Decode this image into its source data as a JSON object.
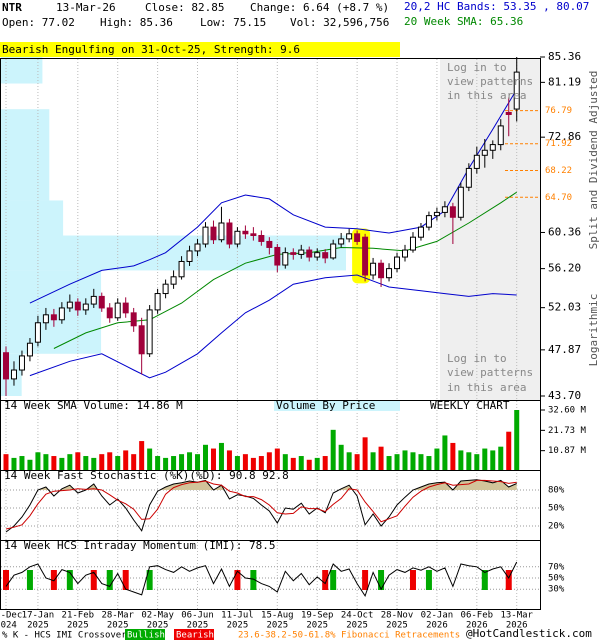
{
  "header": {
    "symbol": "NTR",
    "date": "13-Mar-26",
    "close": "Close: 82.85",
    "change": "Change: 6.64 (+8.7 %)",
    "bands": "20,2 HC Bands: 53.35 , 80.07",
    "open": "Open: 77.02",
    "high": "High: 85.36",
    "low": "Low: 75.15",
    "volume": "Vol: 32,596,756",
    "sma": "20 Week SMA: 65.36"
  },
  "chart_data": [
    {
      "type": "candlestick",
      "annotation": "Bearish Engulfing on 31-Oct-25, Strength: 9.6",
      "pattern_weeks": [
        44,
        45
      ],
      "locked_text": [
        "Log in to",
        "view patterns",
        "in this area"
      ],
      "axis_labels": [
        "Split and Dividend Adjusted",
        "Logarithmic"
      ],
      "categories": [
        "20-Dec",
        null,
        null,
        null,
        "17-Jan",
        null,
        null,
        null,
        null,
        "21-Feb",
        null,
        null,
        null,
        null,
        "28-Mar",
        null,
        null,
        null,
        null,
        "02-May",
        null,
        null,
        null,
        null,
        "06-Jun",
        null,
        null,
        null,
        null,
        "11-Jul",
        null,
        null,
        null,
        null,
        "15-Aug",
        null,
        null,
        null,
        null,
        "19-Sep",
        null,
        null,
        null,
        null,
        "24-Oct",
        null,
        null,
        null,
        null,
        "28-Nov",
        null,
        null,
        null,
        null,
        "02-Jan",
        null,
        null,
        null,
        null,
        "06-Feb",
        null,
        null,
        null,
        null,
        "13-Mar"
      ],
      "category_years": [
        "2024",
        null,
        null,
        null,
        "2025",
        null,
        null,
        null,
        null,
        "2025",
        null,
        null,
        null,
        null,
        "2025",
        null,
        null,
        null,
        null,
        "2025",
        null,
        null,
        null,
        null,
        "2025",
        null,
        null,
        null,
        null,
        "2025",
        null,
        null,
        null,
        null,
        "2025",
        null,
        null,
        null,
        null,
        "2025",
        null,
        null,
        null,
        null,
        "2025",
        null,
        null,
        null,
        null,
        "2025",
        null,
        null,
        null,
        null,
        "2026",
        null,
        null,
        null,
        null,
        "2026",
        null,
        null,
        null,
        null,
        "2026"
      ],
      "open": [
        47.6,
        45.2,
        46.0,
        47.3,
        48.6,
        50.5,
        51.3,
        50.8,
        52.0,
        52.6,
        51.8,
        52.4,
        53.2,
        52.0,
        51.0,
        52.5,
        51.5,
        50.2,
        47.5,
        51.8,
        53.5,
        54.5,
        55.3,
        57.0,
        58.2,
        59.0,
        61.0,
        59.5,
        61.5,
        59.0,
        60.5,
        60.2,
        60.0,
        59.3,
        58.6,
        56.6,
        58.0,
        57.8,
        58.3,
        57.5,
        58.0,
        57.4,
        59.0,
        59.6,
        60.2,
        59.8,
        55.5,
        56.8,
        55.2,
        56.2,
        57.5,
        58.3,
        59.8,
        61.0,
        62.4,
        62.8,
        63.5,
        62.2,
        66.0,
        68.5,
        70.3,
        71.0,
        71.8,
        76.5,
        77.02
      ],
      "high": [
        48.2,
        46.8,
        47.8,
        49.0,
        51.2,
        52.0,
        51.9,
        52.6,
        53.4,
        53.0,
        53.0,
        54.0,
        53.6,
        52.5,
        53.0,
        53.1,
        52.0,
        51.0,
        52.3,
        54.0,
        55.0,
        56.0,
        57.6,
        58.8,
        59.6,
        61.6,
        61.8,
        63.5,
        62.0,
        61.0,
        61.2,
        61.0,
        60.6,
        59.8,
        59.0,
        58.6,
        58.5,
        58.9,
        58.7,
        58.5,
        58.4,
        59.5,
        60.3,
        60.8,
        60.6,
        60.2,
        57.4,
        57.2,
        56.8,
        58.0,
        58.9,
        60.4,
        61.5,
        62.9,
        63.4,
        64.2,
        64.0,
        66.6,
        69.2,
        71.5,
        72.6,
        72.4,
        75.5,
        78.8,
        85.36
      ],
      "low": [
        43.7,
        44.6,
        45.5,
        46.8,
        48.2,
        49.8,
        50.1,
        50.4,
        51.6,
        51.2,
        51.3,
        52.0,
        51.6,
        50.5,
        50.7,
        51.0,
        49.6,
        45.6,
        47.2,
        51.4,
        53.0,
        54.0,
        55.0,
        56.5,
        57.6,
        58.6,
        59.0,
        59.2,
        58.5,
        58.6,
        59.6,
        59.4,
        58.8,
        57.8,
        55.8,
        56.2,
        57.2,
        57.3,
        57.0,
        57.1,
        56.8,
        57.2,
        58.6,
        59.2,
        58.9,
        54.8,
        55.0,
        54.2,
        54.8,
        55.8,
        57.0,
        58.0,
        59.4,
        60.6,
        61.8,
        62.2,
        59.0,
        61.8,
        65.5,
        67.8,
        68.6,
        69.8,
        71.0,
        73.0,
        75.15
      ],
      "close": [
        45.2,
        46.0,
        47.3,
        48.5,
        50.5,
        51.3,
        50.8,
        52.0,
        52.6,
        51.8,
        52.4,
        53.2,
        52.0,
        51.0,
        52.5,
        51.5,
        50.2,
        47.5,
        51.8,
        53.5,
        54.5,
        55.3,
        57.0,
        58.2,
        59.0,
        61.0,
        59.5,
        61.5,
        59.0,
        60.5,
        60.2,
        60.0,
        59.3,
        58.6,
        56.6,
        58.0,
        57.8,
        58.3,
        57.5,
        58.0,
        57.4,
        59.0,
        59.6,
        60.2,
        59.3,
        55.5,
        56.8,
        55.2,
        56.2,
        57.5,
        58.3,
        59.8,
        61.0,
        62.4,
        62.8,
        63.5,
        62.2,
        66.0,
        68.5,
        70.3,
        71.0,
        71.8,
        74.5,
        76.2,
        82.85
      ],
      "up_color": "#ffffff",
      "down_color": "#a0003a",
      "ylim": [
        43.7,
        85.36
      ],
      "log_scale": true,
      "yticks": [
        85.36,
        81.19,
        72.86,
        60.36,
        {
          "value": 56.2,
          "label": "56.20"
        },
        52.03,
        47.87,
        {
          "value": 43.7,
          "label": "43.70"
        }
      ],
      "fibonacci_levels": {
        "color": "#ff8000",
        "values": [
          76.79,
          71.92,
          68.22,
          {
            "value": 64.7,
            "label": "64.70"
          }
        ]
      },
      "hc_bands": {
        "color": "#0000cc",
        "x": [
          3,
          8,
          12,
          16,
          18,
          20,
          24,
          27,
          30,
          33,
          36,
          40,
          44,
          48,
          52,
          55,
          58,
          61,
          64
        ],
        "upper": [
          52.5,
          54.5,
          56,
          56.5,
          57.2,
          58,
          61,
          64,
          65,
          64.5,
          62.5,
          61,
          60.8,
          60.3,
          61,
          63,
          68.5,
          74,
          80.07
        ],
        "lower": [
          45.5,
          46.8,
          47.5,
          46,
          45.3,
          45.8,
          47.5,
          49.5,
          51.5,
          52.8,
          54.5,
          55.2,
          55.5,
          54.2,
          53.8,
          53.5,
          53.2,
          53.5,
          53.35
        ]
      },
      "sma": {
        "color": "#008800",
        "x": [
          6,
          10,
          14,
          18,
          22,
          26,
          30,
          34,
          38,
          42,
          46,
          50,
          54,
          58,
          62,
          64
        ],
        "values": [
          48,
          49.5,
          50.5,
          50.8,
          52.5,
          55,
          56.8,
          57.8,
          58,
          58.6,
          58.5,
          58.2,
          59.3,
          61.5,
          64,
          65.36
        ]
      },
      "volume_by_price": {
        "color": "#ccf4fc",
        "edges": [
          85.36,
          81.0,
          77.0,
          64.3,
          60.0,
          56.0,
          47.5,
          43.7
        ],
        "values": [
          12,
          0,
          14,
          18,
          100,
          29,
          6
        ]
      }
    },
    {
      "type": "bar",
      "title": "14 Week SMA Volume: 14.86 M",
      "subtitle": "Volume By Price",
      "note": "WEEKLY CHART",
      "up_color": "#00aa00",
      "down_color": "#ee0000",
      "values": [
        9,
        7,
        8,
        6,
        10,
        9,
        8,
        7,
        9,
        10,
        8,
        7,
        9,
        10,
        8,
        11,
        9,
        16,
        12,
        8,
        7,
        8,
        9,
        10,
        9,
        14,
        12,
        15,
        11,
        8,
        9,
        7,
        8,
        10,
        12,
        9,
        7,
        8,
        6,
        7,
        8,
        22,
        14,
        10,
        9,
        18,
        10,
        13,
        8,
        9,
        11,
        10,
        9,
        8,
        12,
        19,
        15,
        11,
        10,
        9,
        12,
        11,
        13,
        21,
        32.6
      ],
      "ylim": [
        0,
        32.6
      ],
      "yticks": [
        {
          "value": 32.6,
          "label": "32.60 M"
        },
        {
          "value": 21.73,
          "label": "21.73 M"
        },
        {
          "value": 10.87,
          "label": "10.87 M"
        }
      ]
    },
    {
      "type": "line",
      "title": "14 Week Fast Stochastic (%K)(%D): 90.8 92.8",
      "overbought_fill": "#d2c49a",
      "ylim": [
        0,
        100
      ],
      "yticks": [
        {
          "value": 80,
          "label": "80%"
        },
        {
          "value": 50,
          "label": "50%"
        },
        {
          "value": 20,
          "label": "20%"
        }
      ],
      "series": [
        {
          "name": "%K",
          "color": "#000000",
          "values": [
            10,
            20,
            35,
            55,
            80,
            85,
            70,
            82,
            88,
            75,
            80,
            90,
            70,
            55,
            65,
            50,
            30,
            12,
            55,
            78,
            85,
            90,
            92,
            95,
            93,
            96,
            80,
            88,
            65,
            72,
            70,
            66,
            55,
            45,
            25,
            50,
            48,
            58,
            40,
            50,
            42,
            75,
            82,
            88,
            70,
            22,
            40,
            20,
            35,
            55,
            68,
            80,
            85,
            90,
            92,
            93,
            80,
            95,
            96,
            97,
            95,
            92,
            96,
            85,
            90.8
          ]
        },
        {
          "name": "%D",
          "color": "#cc0000",
          "values": [
            15,
            18,
            22,
            37,
            57,
            73,
            78,
            79,
            80,
            82,
            81,
            82,
            80,
            72,
            63,
            57,
            48,
            31,
            32,
            48,
            73,
            84,
            89,
            92,
            93,
            95,
            90,
            88,
            78,
            75,
            69,
            69,
            64,
            55,
            42,
            40,
            41,
            52,
            49,
            49,
            44,
            56,
            66,
            82,
            80,
            60,
            44,
            27,
            32,
            37,
            53,
            68,
            78,
            85,
            89,
            92,
            88,
            89,
            90,
            96,
            96,
            95,
            94,
            91,
            92.8
          ]
        }
      ]
    },
    {
      "type": "line",
      "title": "14 Week HCS Intraday Momentum (IMI): 78.5",
      "ylim": [
        0,
        100
      ],
      "yticks": [
        {
          "value": 70,
          "label": "70%"
        },
        {
          "value": 50,
          "label": "50%"
        },
        {
          "value": 30,
          "label": "30%"
        }
      ],
      "series": [
        {
          "name": "IMI",
          "color": "#000000",
          "values": [
            35,
            55,
            60,
            70,
            75,
            50,
            45,
            65,
            60,
            40,
            55,
            60,
            40,
            35,
            58,
            30,
            25,
            20,
            70,
            72,
            65,
            60,
            70,
            62,
            68,
            72,
            40,
            66,
            35,
            62,
            50,
            48,
            40,
            35,
            25,
            62,
            45,
            58,
            38,
            52,
            40,
            75,
            62,
            66,
            40,
            18,
            60,
            30,
            55,
            65,
            60,
            68,
            64,
            70,
            62,
            68,
            35,
            75,
            72,
            70,
            60,
            66,
            70,
            50,
            78.5
          ]
        }
      ],
      "crossovers": {
        "bullish": [
          3,
          8,
          13,
          18,
          31,
          41,
          47,
          53,
          60
        ],
        "bearish": [
          0,
          6,
          11,
          15,
          29,
          40,
          45,
          51,
          63
        ],
        "bullish_color": "#00aa00",
        "bearish_color": "#ee0000"
      }
    }
  ],
  "footer": {
    "legend": "% K - HCS IMI Crossover,",
    "bullish": "Bullish",
    "bearish": "Bearish",
    "fibonacci": "23.6-38.2-50-61.8% Fibonacci Retracements",
    "site": "@HotCandlestick.com"
  }
}
